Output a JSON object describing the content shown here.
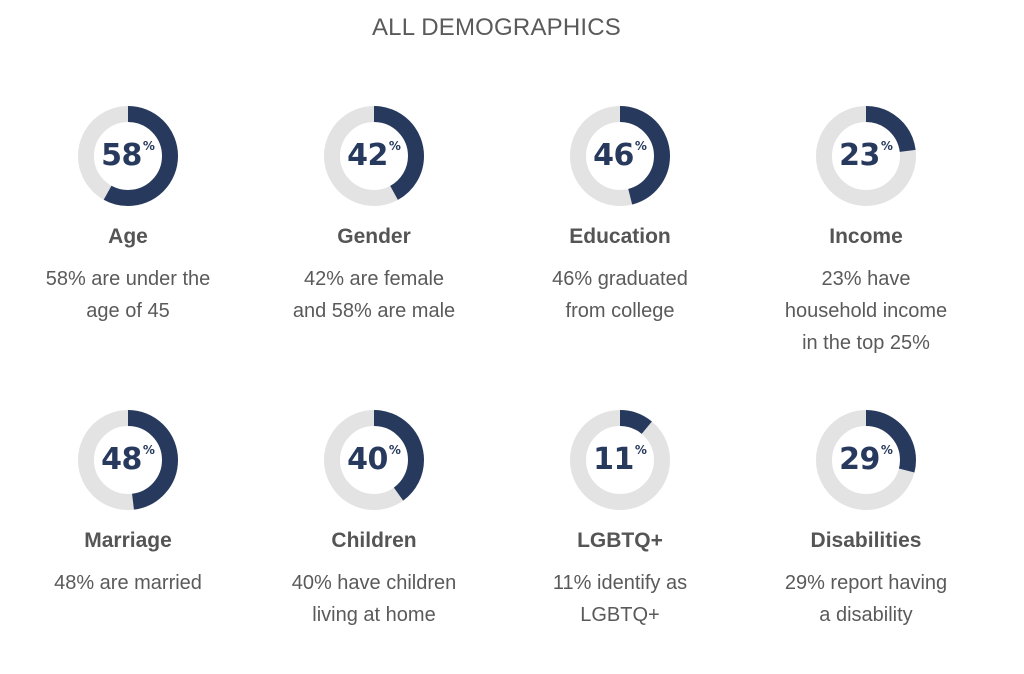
{
  "title": "ALL DEMOGRAPHICS",
  "colors": {
    "filled": "#273a5e",
    "track": "#e3e3e3",
    "text": "#5a5a5a"
  },
  "chart_data": {
    "type": "donut",
    "title": "ALL DEMOGRAPHICS",
    "items": [
      {
        "value": 58,
        "unit": "%",
        "label": "Age",
        "description": "58% are under the\nage of 45"
      },
      {
        "value": 42,
        "unit": "%",
        "label": "Gender",
        "description": "42% are female\nand 58% are male"
      },
      {
        "value": 46,
        "unit": "%",
        "label": "Education",
        "description": "46% graduated\nfrom college"
      },
      {
        "value": 23,
        "unit": "%",
        "label": "Income",
        "description": "23% have\nhousehold income\nin the top 25%"
      },
      {
        "value": 48,
        "unit": "%",
        "label": "Marriage",
        "description": "48% are married"
      },
      {
        "value": 40,
        "unit": "%",
        "label": "Children",
        "description": "40% have children\nliving at home"
      },
      {
        "value": 11,
        "unit": "%",
        "label": "LGBTQ+",
        "description": "11% identify as\nLGBTQ+"
      },
      {
        "value": 29,
        "unit": "%",
        "label": "Disabilities",
        "description": "29% report having\na disability"
      }
    ]
  }
}
